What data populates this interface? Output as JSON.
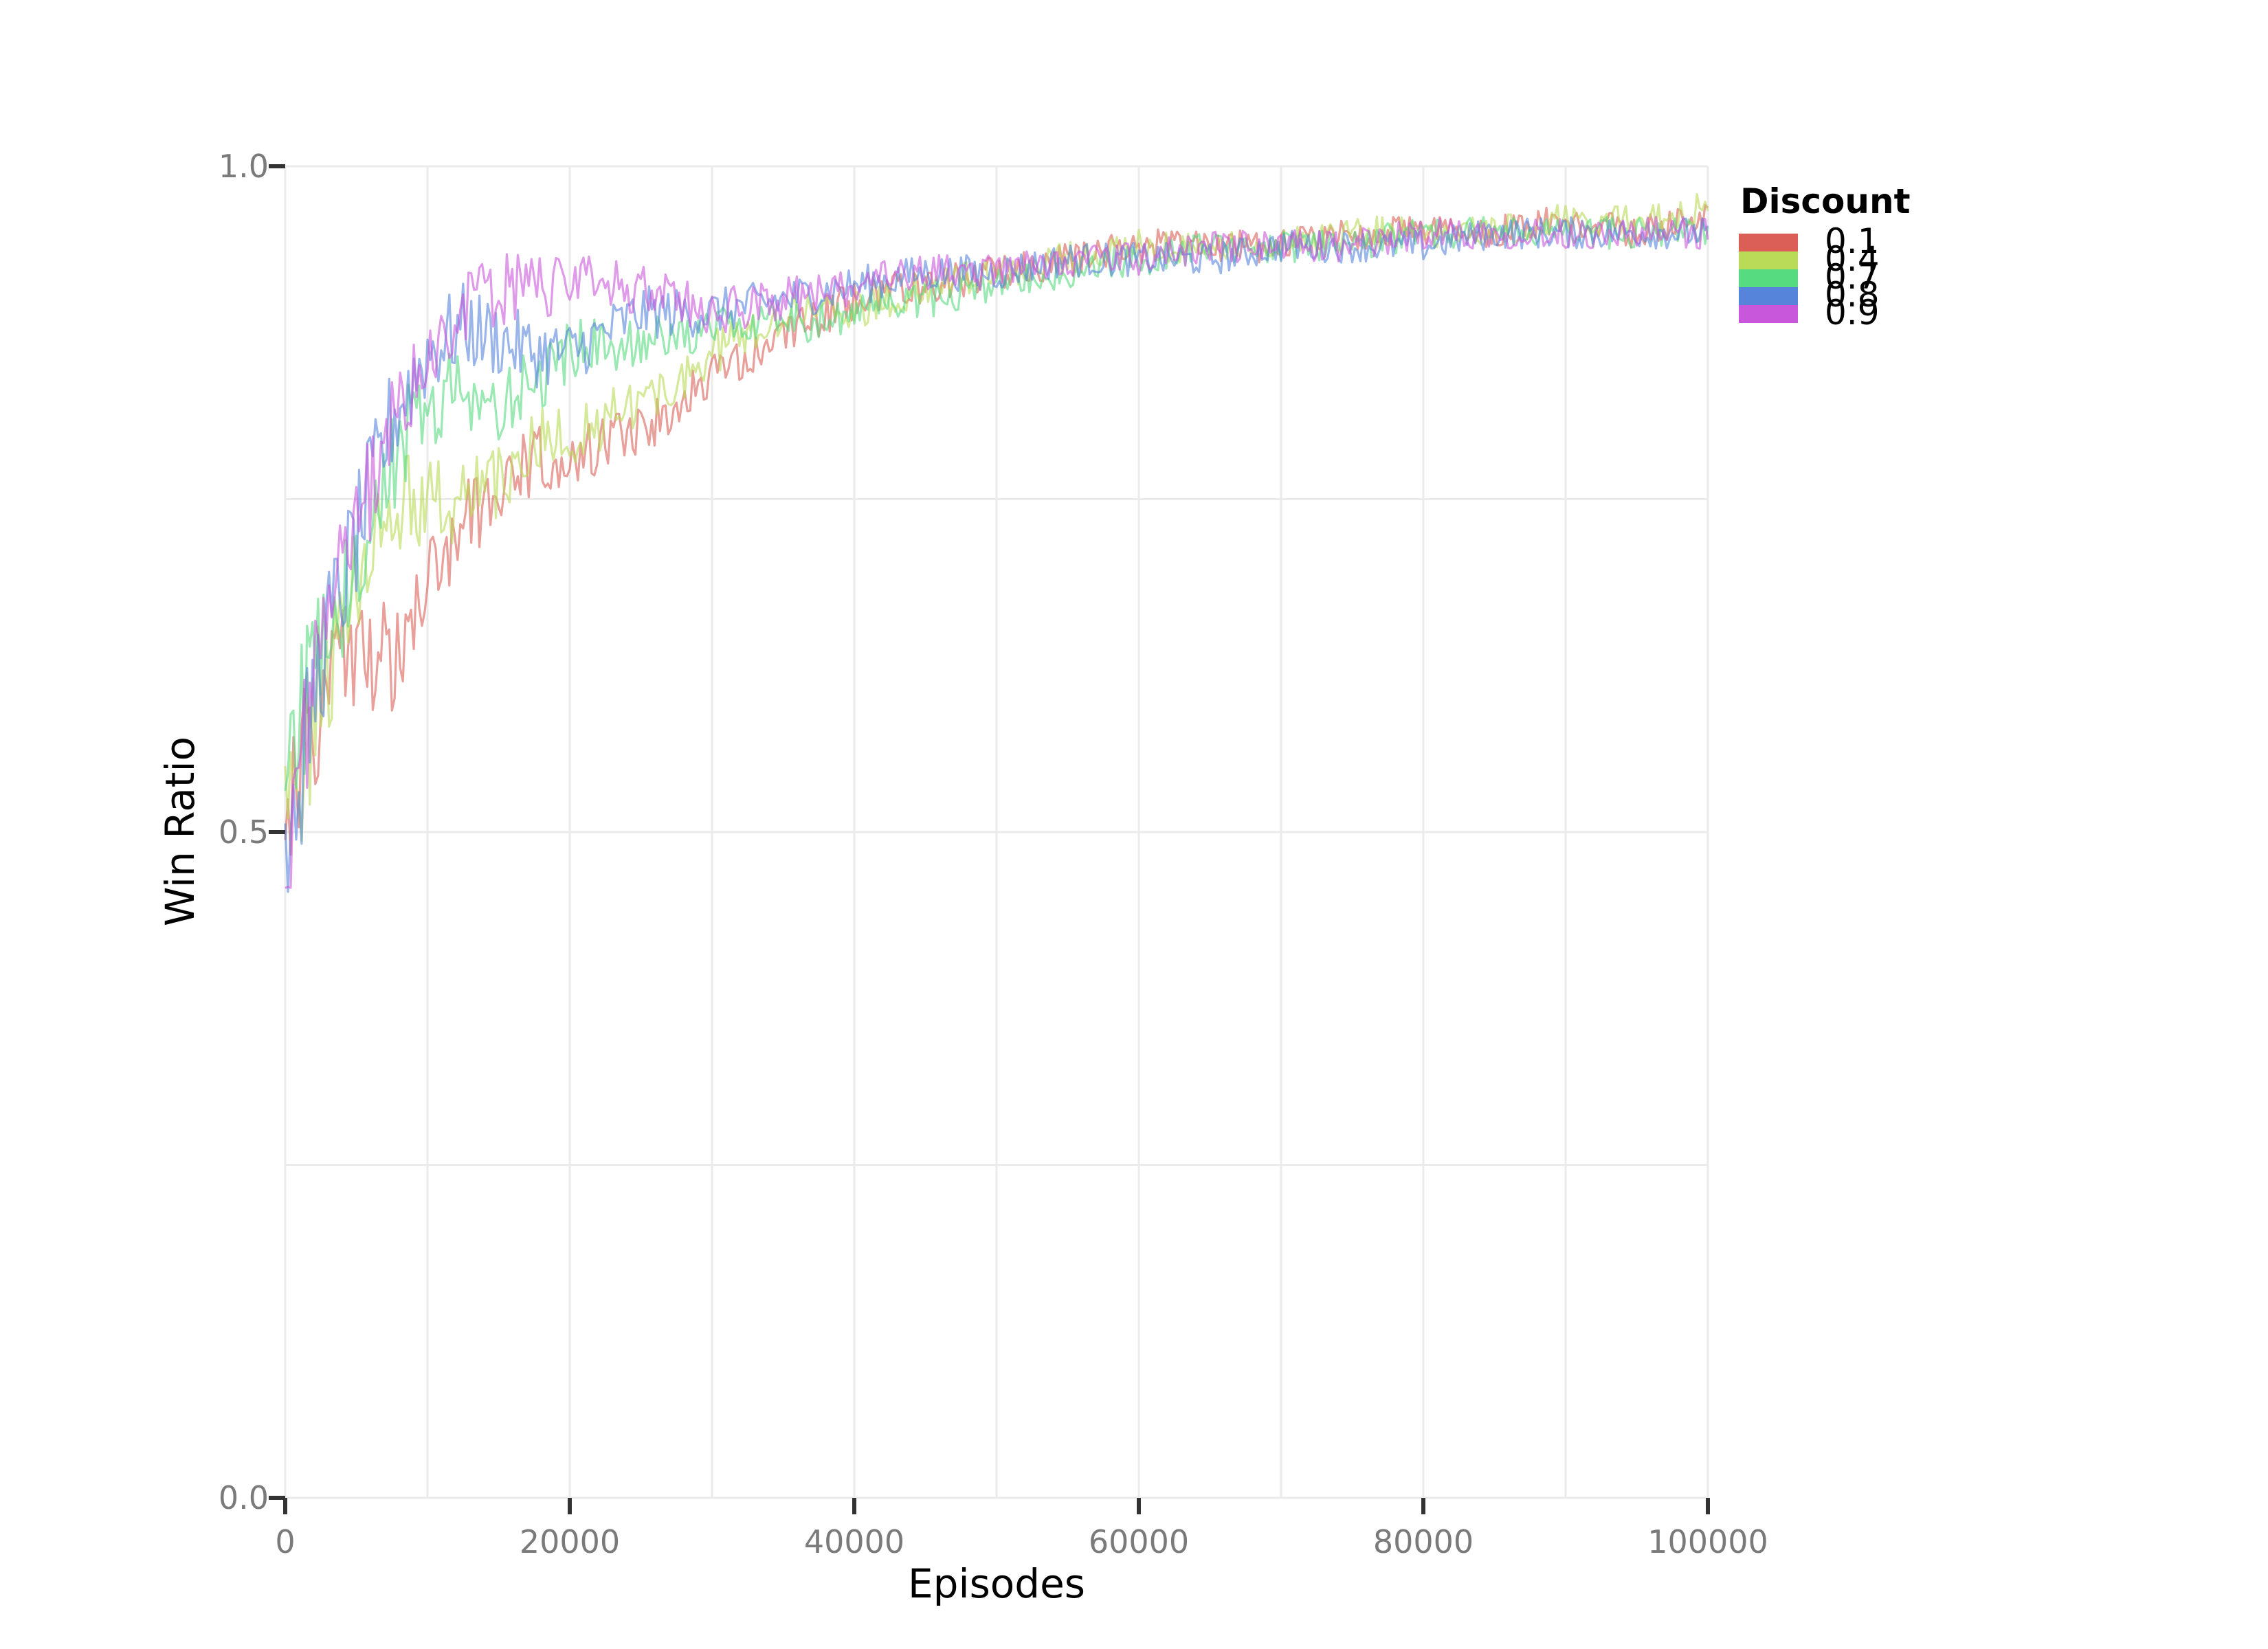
{
  "chart_data": {
    "type": "line",
    "title": "",
    "xlabel": "Episodes",
    "ylabel": "Win Ratio",
    "xlim": [
      0,
      100000
    ],
    "ylim": [
      0.0,
      1.0
    ],
    "x_ticks": [
      0,
      20000,
      40000,
      60000,
      80000,
      100000
    ],
    "x_tick_labels": [
      "0",
      "20000",
      "40000",
      "60000",
      "80000",
      "100000"
    ],
    "y_ticks": [
      0.0,
      0.5,
      1.0
    ],
    "y_tick_labels": [
      "0.0",
      "0.5",
      "1.0"
    ],
    "grid": true,
    "legend": {
      "title": "Discount",
      "placement": "right"
    },
    "x": [
      0,
      2500,
      5000,
      7500,
      10000,
      12500,
      15000,
      17500,
      20000,
      25000,
      30000,
      35000,
      40000,
      45000,
      50000,
      55000,
      60000,
      65000,
      70000,
      75000,
      80000,
      85000,
      90000,
      95000,
      100000
    ],
    "series": [
      {
        "name": "0.1",
        "color": "#db5f57",
        "values": [
          0.5,
          0.6,
          0.64,
          0.63,
          0.7,
          0.73,
          0.76,
          0.78,
          0.78,
          0.8,
          0.84,
          0.87,
          0.9,
          0.91,
          0.92,
          0.93,
          0.94,
          0.94,
          0.94,
          0.95,
          0.95,
          0.95,
          0.96,
          0.95,
          0.96
        ]
      },
      {
        "name": "0.4",
        "color": "#b9db57",
        "values": [
          0.5,
          0.61,
          0.68,
          0.74,
          0.75,
          0.75,
          0.76,
          0.79,
          0.8,
          0.82,
          0.86,
          0.89,
          0.89,
          0.91,
          0.92,
          0.93,
          0.94,
          0.94,
          0.94,
          0.95,
          0.95,
          0.95,
          0.96,
          0.96,
          0.97
        ]
      },
      {
        "name": "0.7",
        "color": "#57db80",
        "values": [
          0.55,
          0.64,
          0.7,
          0.78,
          0.82,
          0.83,
          0.82,
          0.84,
          0.86,
          0.87,
          0.88,
          0.88,
          0.89,
          0.9,
          0.91,
          0.92,
          0.93,
          0.94,
          0.94,
          0.94,
          0.95,
          0.95,
          0.95,
          0.95,
          0.95
        ]
      },
      {
        "name": "0.8",
        "color": "#5784db",
        "values": [
          0.47,
          0.63,
          0.72,
          0.81,
          0.86,
          0.88,
          0.87,
          0.86,
          0.86,
          0.89,
          0.89,
          0.9,
          0.91,
          0.92,
          0.92,
          0.93,
          0.93,
          0.93,
          0.94,
          0.94,
          0.94,
          0.95,
          0.95,
          0.95,
          0.95
        ]
      },
      {
        "name": "0.9",
        "color": "#c957db",
        "values": [
          0.49,
          0.63,
          0.73,
          0.81,
          0.87,
          0.89,
          0.91,
          0.91,
          0.91,
          0.91,
          0.89,
          0.9,
          0.91,
          0.92,
          0.92,
          0.93,
          0.93,
          0.94,
          0.94,
          0.94,
          0.95,
          0.95,
          0.95,
          0.95,
          0.95
        ]
      }
    ]
  }
}
